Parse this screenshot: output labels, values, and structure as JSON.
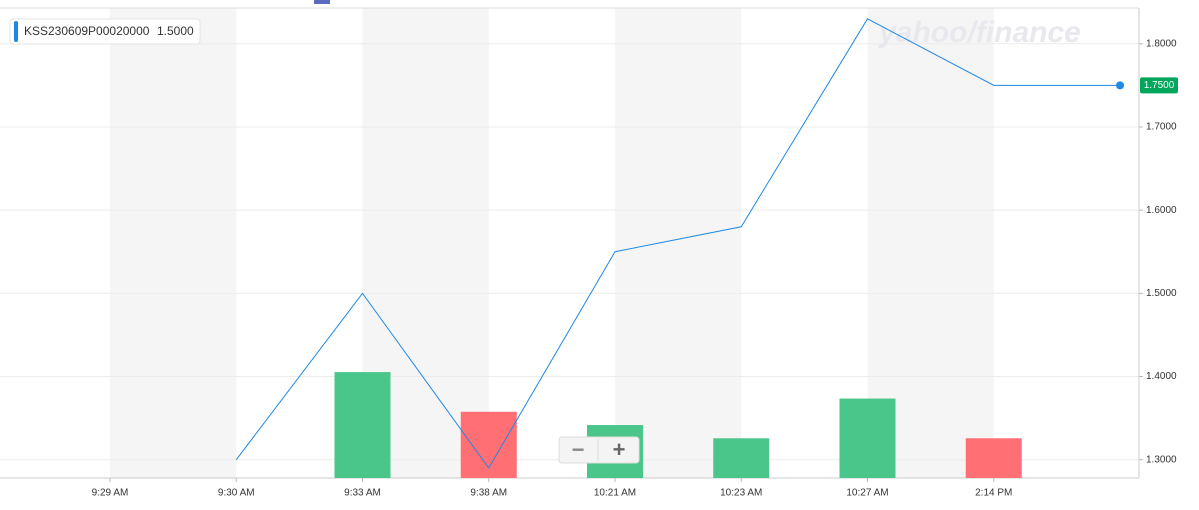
{
  "chart_data": {
    "type": "line",
    "legend_label": "KSS230609P00020000",
    "legend_value": "1.5000",
    "watermark": "yahoo/finance",
    "zoom_out": "−",
    "zoom_in": "+",
    "categories": [
      "9:29 AM",
      "9:30 AM",
      "9:33 AM",
      "9:38 AM",
      "10:21 AM",
      "10:23 AM",
      "10:27 AM",
      "2:14 PM",
      null
    ],
    "values": [
      null,
      1.3,
      1.5,
      1.29,
      1.55,
      1.58,
      1.83,
      1.75,
      1.75
    ],
    "color": "#1e88e5",
    "last_label": "1.7500",
    "last_label_color": "#00a65a",
    "volume": [
      null,
      null,
      8,
      5,
      4,
      3,
      6,
      3,
      null
    ],
    "volume_colors": [
      null,
      null,
      "#4bc68b",
      "#ff6f73",
      "#4bc68b",
      "#4bc68b",
      "#4bc68b",
      "#ff6f73",
      null
    ],
    "volume_lim": [
      0,
      35.5
    ],
    "ylim": [
      1.278,
      1.843
    ],
    "yticks": [
      {
        "value": 1.3,
        "label": "1.3000"
      },
      {
        "value": 1.4,
        "label": "1.4000"
      },
      {
        "value": 1.5,
        "label": "1.5000"
      },
      {
        "value": 1.6,
        "label": "1.6000"
      },
      {
        "value": 1.7,
        "label": "1.7000"
      },
      {
        "value": 1.8,
        "label": "1.8000"
      }
    ],
    "grid": true
  }
}
